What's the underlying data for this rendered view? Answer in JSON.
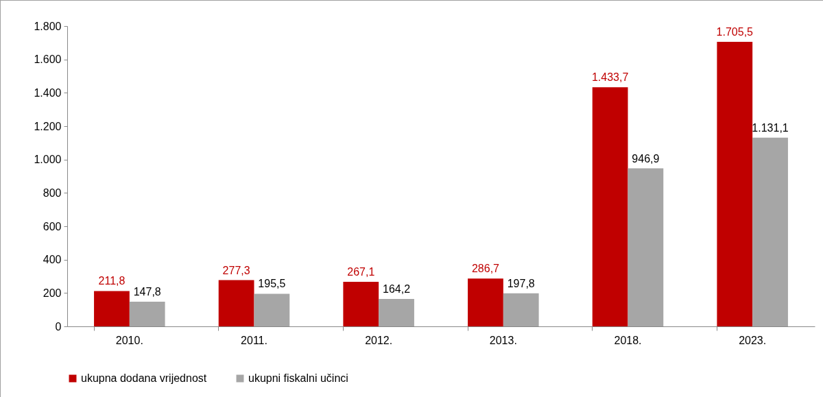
{
  "chart_data": {
    "type": "bar",
    "categories": [
      "2010.",
      "2011.",
      "2012.",
      "2013.",
      "2018.",
      "2023."
    ],
    "series": [
      {
        "name": "ukupna dodana vrijednost",
        "color": "#c00000",
        "values": [
          211.8,
          277.3,
          267.1,
          286.7,
          1433.7,
          1705.5
        ],
        "value_labels": [
          "211,8",
          "277,3",
          "267,1",
          "286,7",
          "1.433,7",
          "1.705,5"
        ]
      },
      {
        "name": "ukupni fiskalni učinci",
        "color": "#a6a6a6",
        "values": [
          147.8,
          195.5,
          164.2,
          197.8,
          946.9,
          1131.1
        ],
        "value_labels": [
          "147,8",
          "195,5",
          "164,2",
          "197,8",
          "946,9",
          "1.131,1"
        ]
      }
    ],
    "ylim": [
      0,
      1800
    ],
    "yticks": [
      0,
      200,
      400,
      600,
      800,
      {
        "value": 1000,
        "label": "1.000"
      },
      {
        "value": 1200,
        "label": "1.200"
      },
      {
        "value": 1400,
        "label": "1.400"
      },
      {
        "value": 1600,
        "label": "1.600"
      },
      {
        "value": 1800,
        "label": "1.800"
      }
    ],
    "grid": false,
    "legend": "bottom"
  }
}
